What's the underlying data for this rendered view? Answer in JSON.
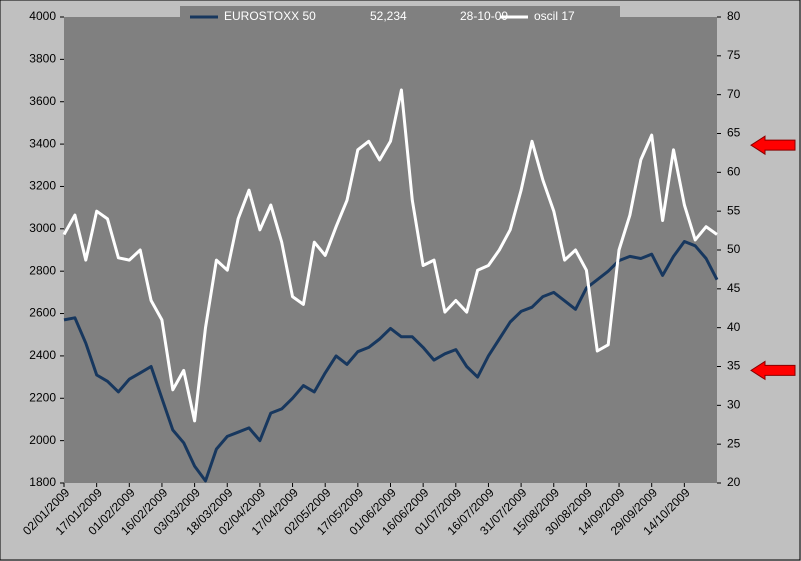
{
  "chart_data": {
    "type": "line",
    "categories": [
      "02/01/2009",
      null,
      null,
      "17/01/2009",
      null,
      null,
      "01/02/2009",
      null,
      null,
      "16/02/2009",
      null,
      null,
      "03/03/2009",
      null,
      null,
      "18/03/2009",
      null,
      null,
      "02/04/2009",
      null,
      null,
      "17/04/2009",
      null,
      null,
      "02/05/2009",
      null,
      null,
      "17/05/2009",
      null,
      null,
      "01/06/2009",
      null,
      null,
      "16/06/2009",
      null,
      null,
      "01/07/2009",
      null,
      null,
      "16/07/2009",
      null,
      null,
      "31/07/2009",
      null,
      null,
      "15/08/2009",
      null,
      null,
      "30/08/2009",
      null,
      null,
      "14/09/2009",
      null,
      null,
      "29/09/2009",
      null,
      null,
      "14/10/2009",
      null,
      null,
      null
    ],
    "series": [
      {
        "name": "EUROSTOXX 50",
        "color": "#17375e",
        "axis": "y",
        "values": [
          2570,
          2580,
          2460,
          2310,
          2280,
          2230,
          2290,
          2320,
          2350,
          2200,
          2050,
          1990,
          1880,
          1810,
          1960,
          2020,
          2040,
          2060,
          2000,
          2130,
          2150,
          2200,
          2260,
          2230,
          2320,
          2400,
          2360,
          2420,
          2440,
          2480,
          2530,
          2490,
          2490,
          2440,
          2380,
          2410,
          2430,
          2350,
          2300,
          2400,
          2480,
          2560,
          2610,
          2630,
          2680,
          2700,
          2660,
          2620,
          2720,
          2760,
          2800,
          2850,
          2870,
          2860,
          2880,
          2780,
          2870,
          2940,
          2920,
          2860,
          2760
        ]
      },
      {
        "name": "oscil 17",
        "color": "#ffffff",
        "axis": "y2",
        "values": [
          52,
          54.5,
          48.7,
          55,
          54,
          49,
          48.7,
          50,
          43.5,
          41,
          32,
          34.5,
          28,
          40,
          48.7,
          47.4,
          54,
          57.7,
          52.6,
          55.8,
          51,
          44,
          43,
          51,
          49.3,
          53,
          56.4,
          62.9,
          64,
          61.6,
          64,
          70.6,
          56.4,
          48,
          48.7,
          42,
          43.5,
          42,
          47.4,
          48,
          50,
          52.6,
          57.7,
          64,
          59,
          55,
          48.7,
          50,
          47.4,
          37,
          37.8,
          50,
          54.5,
          61.6,
          64.8,
          53.8,
          62.9,
          55.8,
          51.3,
          53,
          52
        ]
      }
    ],
    "legend_extra": [
      "52,234",
      "28-10-09"
    ],
    "ylim": [
      1800,
      4000
    ],
    "yticks": [
      1800,
      2000,
      2200,
      2400,
      2600,
      2800,
      3000,
      3200,
      3400,
      3600,
      3800,
      4000
    ],
    "y2lim": [
      20,
      80
    ],
    "y2ticks": [
      20,
      25,
      30,
      35,
      40,
      45,
      50,
      55,
      60,
      65,
      70,
      75,
      80
    ],
    "arrows": [
      63.5,
      34.5
    ],
    "arrow_color": "#ff0000"
  }
}
